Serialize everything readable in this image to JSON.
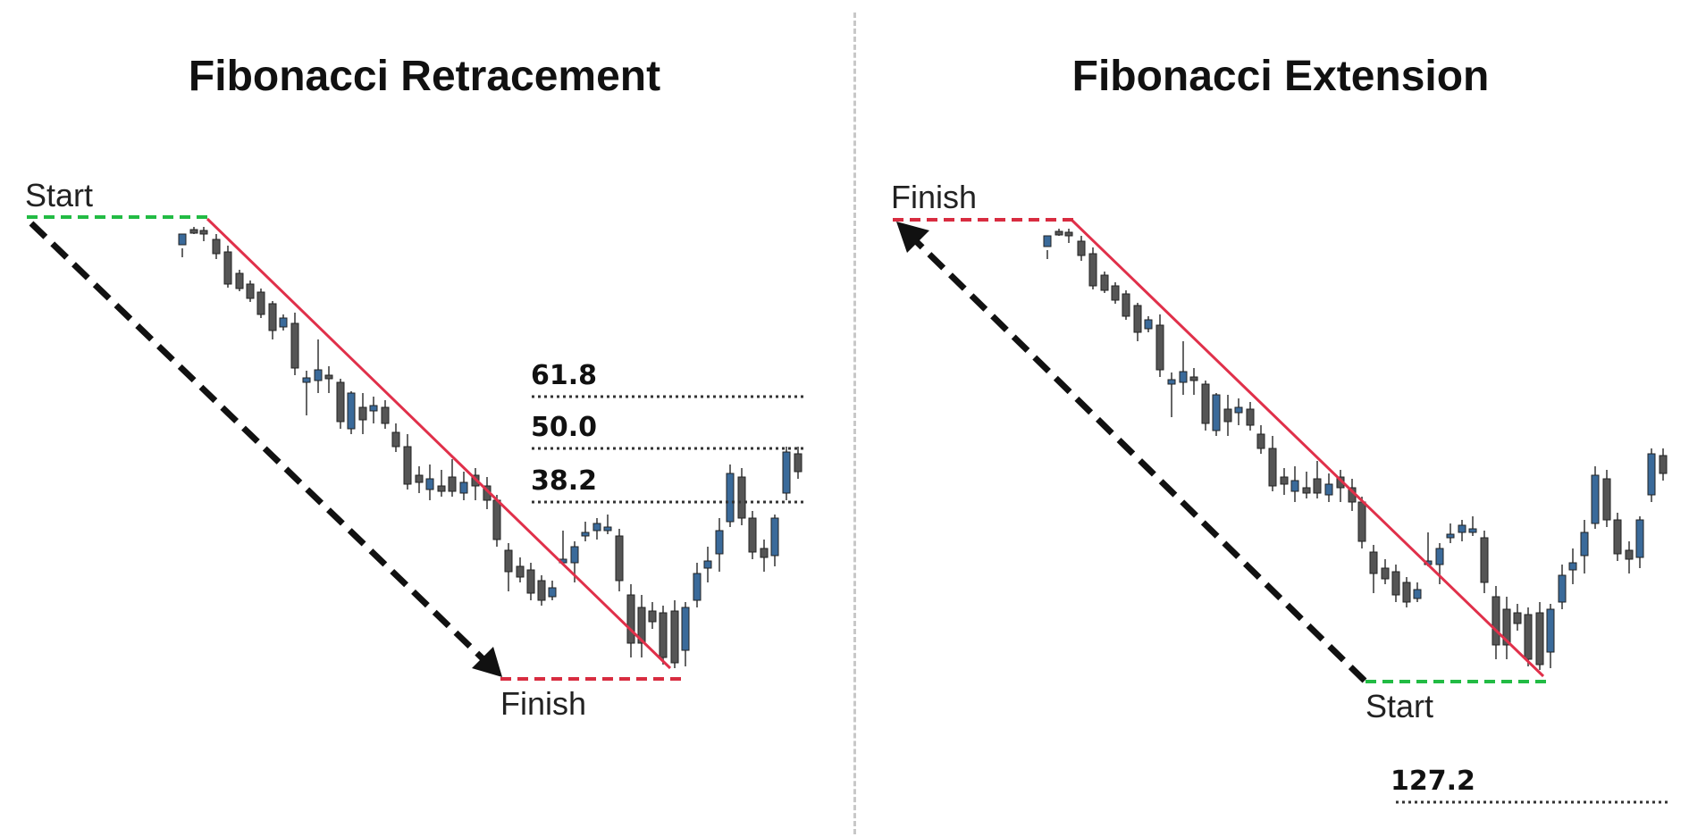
{
  "left": {
    "title": "Fibonacci Retracement",
    "start_label": "Start",
    "finish_label": "Finish",
    "levels": [
      "61.8",
      "50.0",
      "38.2"
    ]
  },
  "right": {
    "title": "Fibonacci Extension",
    "finish_label": "Finish",
    "start_label": "Start",
    "levels": [
      "127.2"
    ]
  },
  "colors": {
    "bull_candle": "#3a6a9a",
    "bear_candle": "#555555",
    "trend_line": "#e0304a",
    "start_dash": "#22bb44",
    "finish_dash": "#d82c40",
    "arrow": "#111111",
    "divider": "#c8c8c8"
  }
}
